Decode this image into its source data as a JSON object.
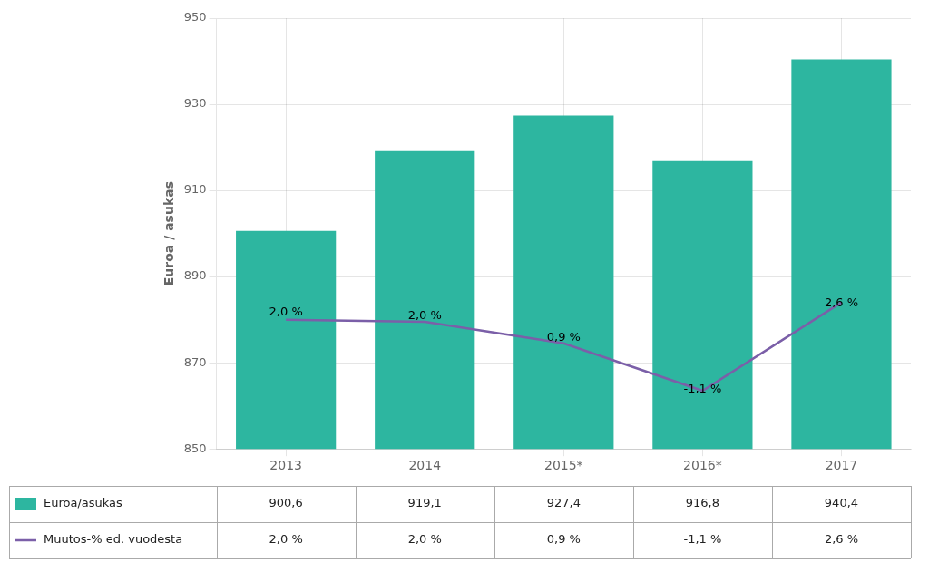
{
  "chart_data": {
    "type": "bar",
    "ylabel": "Euroa / asukas",
    "categories": [
      "2013",
      "2014",
      "2015*",
      "2016*",
      "2017"
    ],
    "series": [
      {
        "name": "Euroa/asukas",
        "type": "bar",
        "color": "#2db6a0",
        "values": [
          900.6,
          919.1,
          927.4,
          916.8,
          940.4
        ],
        "value_labels": [
          "900,6",
          "919,1",
          "927,4",
          "916,8",
          "940,4"
        ]
      },
      {
        "name": "Muutos-% ed. vuodesta",
        "type": "line",
        "color": "#7b5fa8",
        "values": [
          880.0,
          879.5,
          874.5,
          863.5,
          884.0
        ]
      }
    ],
    "annotations": [
      {
        "text": "2,0 %",
        "x": "2013",
        "y": 884
      },
      {
        "text": "2,0 %",
        "x": "2014",
        "y": 883
      },
      {
        "text": "0,9 %",
        "x": "2015*",
        "y": 878
      },
      {
        "text": "-1,1 %",
        "x": "2016*",
        "y": 866
      },
      {
        "text": "2,6 %",
        "x": "2017",
        "y": 886
      }
    ],
    "ylim": [
      850,
      950
    ],
    "yticks": [
      850,
      870,
      890,
      910,
      930,
      950
    ],
    "grid": true
  }
}
